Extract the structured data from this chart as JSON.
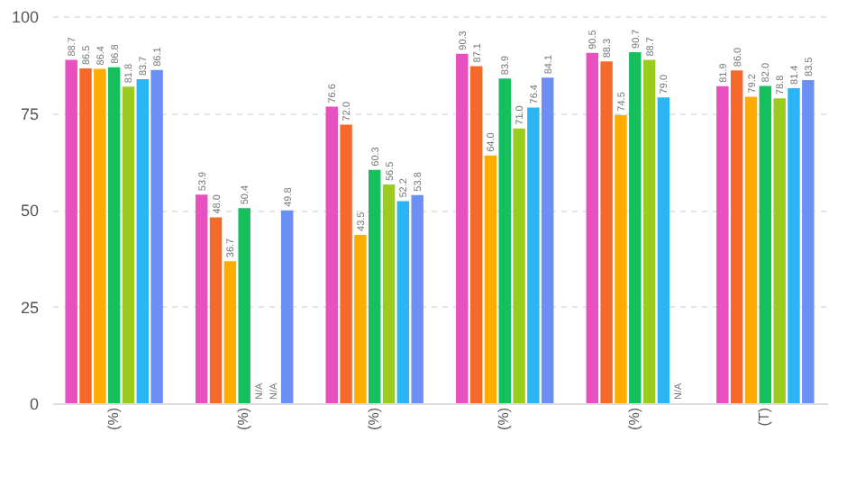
{
  "chart_data": {
    "type": "bar",
    "categories": [
      "(%)",
      "(%)",
      "(%)",
      "(%)",
      "(%)",
      "(T)"
    ],
    "series": [
      {
        "color": "#e84fbf",
        "values": [
          88.7,
          53.9,
          76.6,
          90.3,
          90.5,
          81.9
        ],
        "value_labels": [
          "88.7",
          "53.9",
          "76.6",
          "90.3",
          "90.5",
          "81.9"
        ]
      },
      {
        "color": "#f5692a",
        "values": [
          86.5,
          48.0,
          72.0,
          87.1,
          88.3,
          86.0
        ],
        "value_labels": [
          "86.5",
          "48.0",
          "72.0",
          "87.1",
          "88.3",
          "86.0"
        ]
      },
      {
        "color": "#ffab00",
        "values": [
          86.4,
          36.7,
          43.5,
          64.0,
          74.5,
          79.2
        ],
        "value_labels": [
          "86.4",
          "36.7",
          "43.5",
          "64.0",
          "74.5",
          "79.2"
        ]
      },
      {
        "color": "#14bf5c",
        "values": [
          86.8,
          50.4,
          60.3,
          83.9,
          90.7,
          82.0
        ],
        "value_labels": [
          "86.8",
          "50.4",
          "60.3",
          "83.9",
          "90.7",
          "82.0"
        ]
      },
      {
        "color": "#9ccb1f",
        "values": [
          81.8,
          null,
          56.5,
          71.0,
          88.7,
          78.8
        ],
        "value_labels": [
          "81.8",
          "N/A",
          "56.5",
          "71.0",
          "88.7",
          "78.8"
        ]
      },
      {
        "color": "#2cb5f4",
        "values": [
          83.7,
          null,
          52.2,
          76.4,
          79.0,
          81.4
        ],
        "value_labels": [
          "83.7",
          "N/A",
          "52.2",
          "76.4",
          "79.0",
          "81.4"
        ]
      },
      {
        "color": "#6b8ff5",
        "values": [
          86.1,
          49.8,
          53.8,
          84.1,
          null,
          83.5
        ],
        "value_labels": [
          "86.1",
          "49.8",
          "53.8",
          "84.1",
          "N/A",
          "83.5"
        ]
      }
    ],
    "ylim": [
      0,
      100
    ],
    "yticks": [
      0,
      25,
      50,
      75,
      100
    ],
    "grid": "y",
    "legend": false
  }
}
